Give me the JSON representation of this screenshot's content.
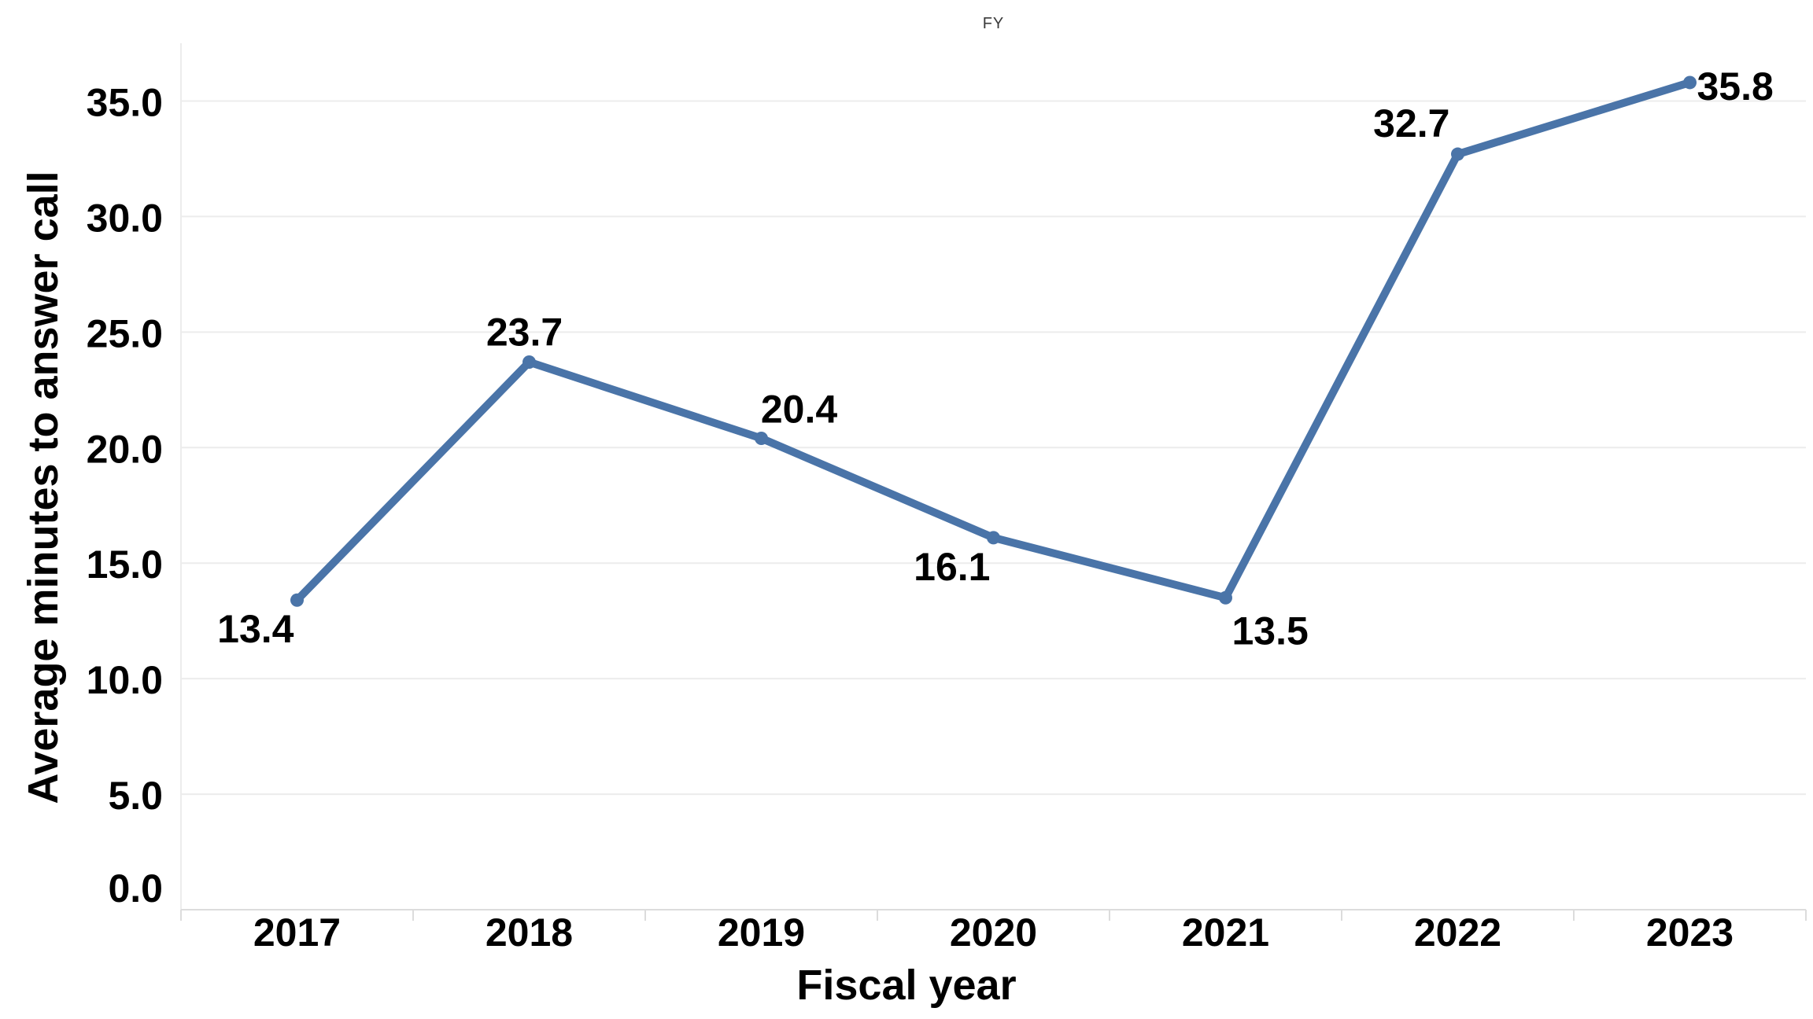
{
  "page": {
    "background": "#ffffff"
  },
  "chart_data": {
    "type": "line",
    "title": "FY",
    "xlabel": "Fiscal year",
    "ylabel": "Average minutes to answer call",
    "categories": [
      "2017",
      "2018",
      "2019",
      "2020",
      "2021",
      "2022",
      "2023"
    ],
    "series": [
      {
        "name": "FY",
        "values": [
          13.4,
          23.7,
          20.4,
          16.1,
          13.5,
          32.7,
          35.8
        ]
      }
    ],
    "data_labels": [
      "13.4",
      "23.7",
      "20.4",
      "16.1",
      "13.5",
      "32.7",
      "35.8"
    ],
    "data_label_positions": [
      "below-left",
      "above",
      "above-right",
      "below-left",
      "below-right",
      "above-left",
      "right"
    ],
    "ytick_labels": [
      "0.0",
      "5.0",
      "10.0",
      "15.0",
      "20.0",
      "25.0",
      "30.0",
      "35.0"
    ],
    "ylim": [
      0,
      37.5
    ],
    "grid": "horizontal-only",
    "legend_position": "none",
    "marker": "circle",
    "line_color": "#4a74a8",
    "grid_color": "#ececec",
    "axis_line_color": "#dcdcdc",
    "text_color": "#000000",
    "title_color": "#3a3a3a"
  }
}
